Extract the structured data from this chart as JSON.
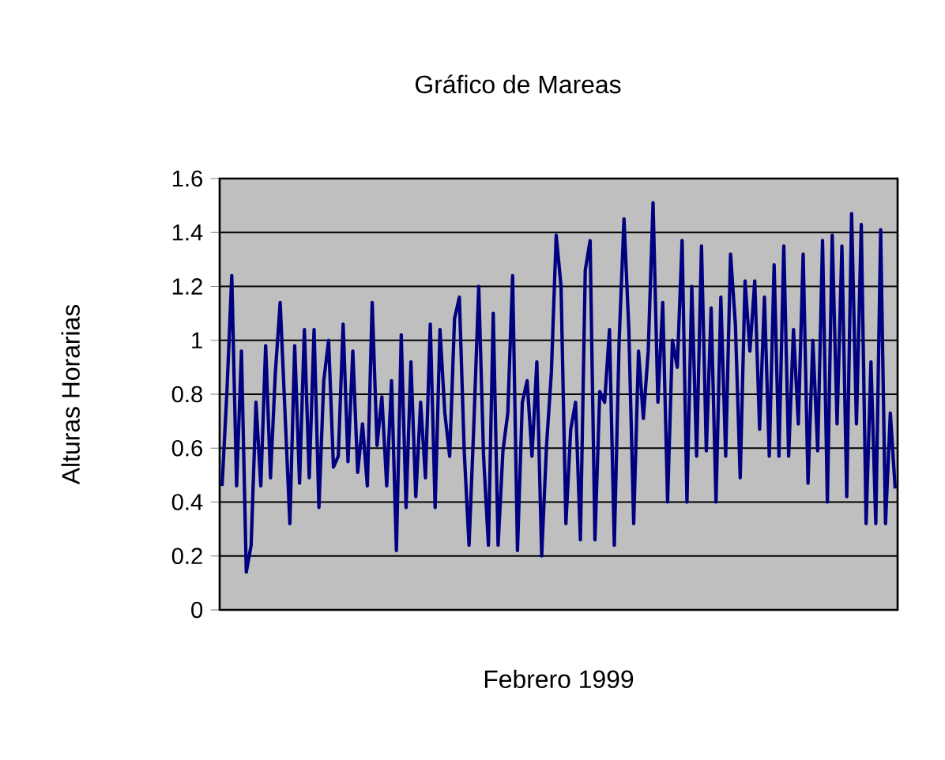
{
  "chart_data": {
    "type": "line",
    "title": "Gráfico de Mareas",
    "xlabel": "Febrero 1999",
    "ylabel": "Alturas Horarias",
    "categories": [
      null,
      null,
      null,
      null,
      null,
      null,
      null,
      null,
      null,
      null,
      null,
      null,
      null,
      null,
      null,
      null,
      null,
      null,
      null,
      null,
      null,
      null,
      null,
      null,
      null,
      null,
      null,
      null,
      null,
      null,
      null,
      null,
      null,
      null,
      null,
      null,
      null,
      null,
      null,
      null,
      null,
      null,
      null,
      null,
      null,
      null,
      null,
      null,
      null,
      null,
      null,
      null,
      null,
      null,
      null,
      null,
      null,
      null,
      null,
      null,
      null,
      null,
      null,
      null,
      null,
      null,
      null,
      null,
      null,
      null,
      null,
      null,
      null,
      null,
      null,
      null,
      null,
      null,
      null,
      null,
      null,
      null,
      null,
      null,
      null,
      null,
      null,
      null,
      null,
      null,
      null,
      null,
      null,
      null,
      null,
      null,
      null,
      null,
      null,
      null,
      null,
      null,
      null,
      null,
      null,
      null,
      null,
      null,
      null,
      null,
      null,
      null,
      null,
      null,
      null,
      null,
      null,
      null,
      null,
      null,
      null,
      null,
      null,
      null,
      null,
      null,
      null,
      null,
      null,
      null,
      null,
      null,
      null,
      null,
      null,
      null,
      null,
      null,
      null,
      null
    ],
    "series": [
      {
        "color": "#000080",
        "values": [
          0.46,
          0.81,
          1.24,
          0.46,
          0.96,
          0.14,
          0.24,
          0.77,
          0.46,
          0.98,
          0.49,
          0.88,
          1.14,
          0.73,
          0.32,
          0.98,
          0.47,
          1.04,
          0.49,
          1.04,
          0.38,
          0.85,
          1.0,
          0.53,
          0.57,
          1.06,
          0.55,
          0.96,
          0.51,
          0.69,
          0.46,
          1.14,
          0.61,
          0.79,
          0.46,
          0.85,
          0.22,
          1.02,
          0.38,
          0.92,
          0.42,
          0.77,
          0.49,
          1.06,
          0.38,
          1.04,
          0.73,
          0.57,
          1.08,
          1.16,
          0.59,
          0.24,
          0.69,
          1.2,
          0.57,
          0.24,
          1.1,
          0.24,
          0.59,
          0.73,
          1.24,
          0.22,
          0.77,
          0.85,
          0.57,
          0.92,
          0.2,
          0.61,
          0.88,
          1.39,
          1.2,
          0.32,
          0.67,
          0.77,
          0.26,
          1.26,
          1.37,
          0.26,
          0.81,
          0.77,
          1.04,
          0.24,
          1.0,
          1.45,
          1.04,
          0.32,
          0.96,
          0.71,
          0.96,
          1.51,
          0.77,
          1.14,
          0.4,
          1.0,
          0.9,
          1.37,
          0.4,
          1.2,
          0.57,
          1.35,
          0.59,
          1.12,
          0.4,
          1.16,
          0.57,
          1.32,
          1.06,
          0.49,
          1.22,
          0.96,
          1.22,
          0.67,
          1.16,
          0.57,
          1.28,
          0.57,
          1.35,
          0.57,
          1.04,
          0.69,
          1.32,
          0.47,
          1.0,
          0.59,
          1.37,
          0.4,
          1.39,
          0.69,
          1.35,
          0.42,
          1.47,
          0.69,
          1.43,
          0.32,
          0.92,
          0.32,
          1.41,
          0.32,
          0.73,
          0.45
        ]
      }
    ],
    "ylim": [
      0,
      1.6
    ],
    "yticks": [
      0,
      0.2,
      0.4,
      0.6,
      0.8,
      1,
      1.2,
      1.4,
      1.6
    ],
    "grid": "y",
    "marker": "none",
    "line_style": "solid"
  }
}
